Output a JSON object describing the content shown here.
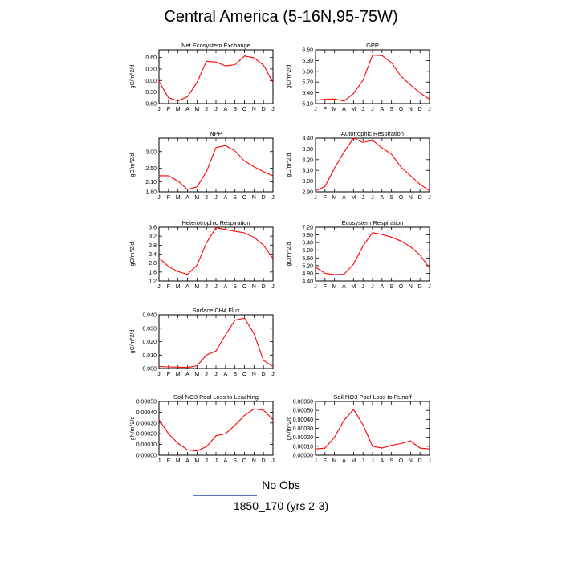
{
  "title": "Central America (5-16N,95-75W)",
  "legend": [
    {
      "label": "No Obs",
      "color": "#5577bb"
    },
    {
      "label": "1850_170 (yrs 2-3)",
      "color": "#dd3333"
    }
  ],
  "colors": {
    "series": "#ff0000"
  },
  "chart_data": [
    {
      "type": "line",
      "title": "Net Ecosystem Exchange",
      "ylabel": "gC/m^2/d",
      "x": [
        "J",
        "F",
        "M",
        "A",
        "M",
        "J",
        "J",
        "A",
        "S",
        "O",
        "N",
        "D",
        "J"
      ],
      "ylim": [
        -0.6,
        0.8
      ],
      "yticks": [
        "0.60",
        "0.30",
        "0.00",
        "-0.30",
        "-0.60"
      ],
      "ytick_values": [
        0.6,
        0.3,
        0,
        -0.3,
        -0.6
      ],
      "series": [
        {
          "values": [
            -0.02,
            -0.45,
            -0.53,
            -0.42,
            -0.05,
            0.5,
            0.48,
            0.38,
            0.41,
            0.64,
            0.59,
            0.4,
            -0.05
          ]
        }
      ]
    },
    {
      "type": "line",
      "title": "GPP",
      "ylabel": "gC/m^2/d",
      "x": [
        "J",
        "F",
        "M",
        "A",
        "M",
        "J",
        "J",
        "A",
        "S",
        "O",
        "N",
        "D",
        "J"
      ],
      "ylim": [
        5.1,
        6.6
      ],
      "yticks": [
        "6.60",
        "6.30",
        "6.00",
        "5.70",
        "5.40",
        "5.10"
      ],
      "ytick_values": [
        6.6,
        6.3,
        6.0,
        5.7,
        5.4,
        5.1
      ],
      "series": [
        {
          "values": [
            5.19,
            5.22,
            5.23,
            5.17,
            5.38,
            5.75,
            6.45,
            6.44,
            6.24,
            5.86,
            5.62,
            5.4,
            5.22
          ]
        }
      ]
    },
    {
      "type": "line",
      "title": "NPP",
      "ylabel": "gC/m^2/d",
      "x": [
        "J",
        "F",
        "M",
        "A",
        "M",
        "J",
        "J",
        "A",
        "S",
        "O",
        "N",
        "D",
        "J"
      ],
      "ylim": [
        1.8,
        3.4
      ],
      "yticks": [
        "3.00",
        "2.50",
        "2.10",
        "1.80"
      ],
      "ytick_values": [
        3.0,
        2.5,
        2.1,
        1.8
      ],
      "series": [
        {
          "values": [
            2.28,
            2.28,
            2.12,
            1.87,
            1.95,
            2.4,
            3.12,
            3.18,
            3.02,
            2.72,
            2.55,
            2.4,
            2.28
          ]
        }
      ]
    },
    {
      "type": "line",
      "title": "Autotrophic Respiration",
      "ylabel": "gC/m^2/d",
      "x": [
        "J",
        "F",
        "M",
        "A",
        "M",
        "J",
        "J",
        "A",
        "S",
        "O",
        "N",
        "D",
        "J"
      ],
      "ylim": [
        2.9,
        3.4
      ],
      "yticks": [
        "3.40",
        "3.30",
        "3.20",
        "3.10",
        "3.00",
        "2.90"
      ],
      "ytick_values": [
        3.4,
        3.3,
        3.2,
        3.1,
        3.0,
        2.9
      ],
      "series": [
        {
          "values": [
            2.91,
            2.95,
            3.12,
            3.27,
            3.4,
            3.36,
            3.38,
            3.31,
            3.25,
            3.13,
            3.05,
            2.97,
            2.91
          ]
        }
      ]
    },
    {
      "type": "line",
      "title": "Heterotrophic Respiration",
      "ylabel": "gC/m^2/d",
      "x": [
        "J",
        "F",
        "M",
        "A",
        "M",
        "J",
        "J",
        "A",
        "S",
        "O",
        "N",
        "D",
        "J"
      ],
      "ylim": [
        1.2,
        3.6
      ],
      "yticks": [
        "3.6",
        "3.2",
        "2.8",
        "2.4",
        "2.0",
        "1.6",
        "1.2"
      ],
      "ytick_values": [
        3.6,
        3.2,
        2.8,
        2.4,
        2.0,
        1.6,
        1.2
      ],
      "series": [
        {
          "values": [
            2.22,
            1.85,
            1.62,
            1.5,
            1.9,
            2.9,
            3.58,
            3.5,
            3.42,
            3.35,
            3.15,
            2.8,
            2.2
          ]
        }
      ]
    },
    {
      "type": "line",
      "title": "Ecosystem Respiration",
      "ylabel": "gC/m^2/d",
      "x": [
        "J",
        "F",
        "M",
        "A",
        "M",
        "J",
        "J",
        "A",
        "S",
        "O",
        "N",
        "D",
        "J"
      ],
      "ylim": [
        4.4,
        7.2
      ],
      "yticks": [
        "7.20",
        "6.80",
        "6.40",
        "6.00",
        "5.60",
        "5.20",
        "4.80",
        "4.40"
      ],
      "ytick_values": [
        7.2,
        6.8,
        6.4,
        6.0,
        5.6,
        5.2,
        4.8,
        4.4
      ],
      "series": [
        {
          "values": [
            5.12,
            4.8,
            4.73,
            4.75,
            5.28,
            6.22,
            6.92,
            6.82,
            6.68,
            6.48,
            6.18,
            5.75,
            5.08
          ]
        }
      ]
    },
    {
      "type": "line",
      "title": "Surface CH4 Flux",
      "ylabel": "gC/m^2/d",
      "x": [
        "J",
        "F",
        "M",
        "A",
        "M",
        "J",
        "J",
        "A",
        "S",
        "O",
        "N",
        "D",
        "J"
      ],
      "ylim": [
        0,
        0.04
      ],
      "yticks": [
        "0.040",
        "0.030",
        "0.020",
        "0.010",
        "0.000"
      ],
      "ytick_values": [
        0.04,
        0.03,
        0.02,
        0.01,
        0.0
      ],
      "series": [
        {
          "values": [
            0.0015,
            0.0012,
            0.001,
            0.0008,
            0.002,
            0.01,
            0.013,
            0.025,
            0.036,
            0.0375,
            0.026,
            0.006,
            0.0015
          ]
        }
      ]
    },
    null,
    {
      "type": "line",
      "title": "Soil NO3 Pool Loss to Leaching",
      "ylabel": "gN/m^2/d",
      "x": [
        "J",
        "F",
        "M",
        "A",
        "M",
        "J",
        "J",
        "A",
        "S",
        "O",
        "N",
        "D",
        "J"
      ],
      "ylim": [
        0,
        0.0005
      ],
      "yticks": [
        "0.00050",
        "0.00040",
        "0.00030",
        "0.00020",
        "0.00010",
        "0.00000"
      ],
      "ytick_values": [
        0.0005,
        0.0004,
        0.0003,
        0.0002,
        0.0001,
        0.0
      ],
      "series": [
        {
          "values": [
            0.00033,
            0.0002,
            0.00011,
            5e-05,
            4e-05,
            8e-05,
            0.00018,
            0.0002,
            0.00028,
            0.00037,
            0.00043,
            0.00042,
            0.00033
          ]
        }
      ]
    },
    {
      "type": "line",
      "title": "Soil NO3 Pool Loss to Runoff",
      "ylabel": "gN/m^2/d",
      "x": [
        "J",
        "F",
        "M",
        "A",
        "M",
        "J",
        "J",
        "A",
        "S",
        "O",
        "N",
        "D",
        "J"
      ],
      "ylim": [
        0,
        0.0006
      ],
      "yticks": [
        "0.00060",
        "0.00050",
        "0.00040",
        "0.00030",
        "0.00020",
        "0.00010",
        "0.00000"
      ],
      "ytick_values": [
        0.0006,
        0.0005,
        0.0004,
        0.0003,
        0.0002,
        0.0001,
        0.0
      ],
      "series": [
        {
          "values": [
            7e-05,
            8e-05,
            0.0002,
            0.00039,
            0.00051,
            0.00034,
            0.0001,
            8e-05,
            0.00011,
            0.00013,
            0.00016,
            8e-05,
            7e-05
          ]
        }
      ]
    }
  ]
}
